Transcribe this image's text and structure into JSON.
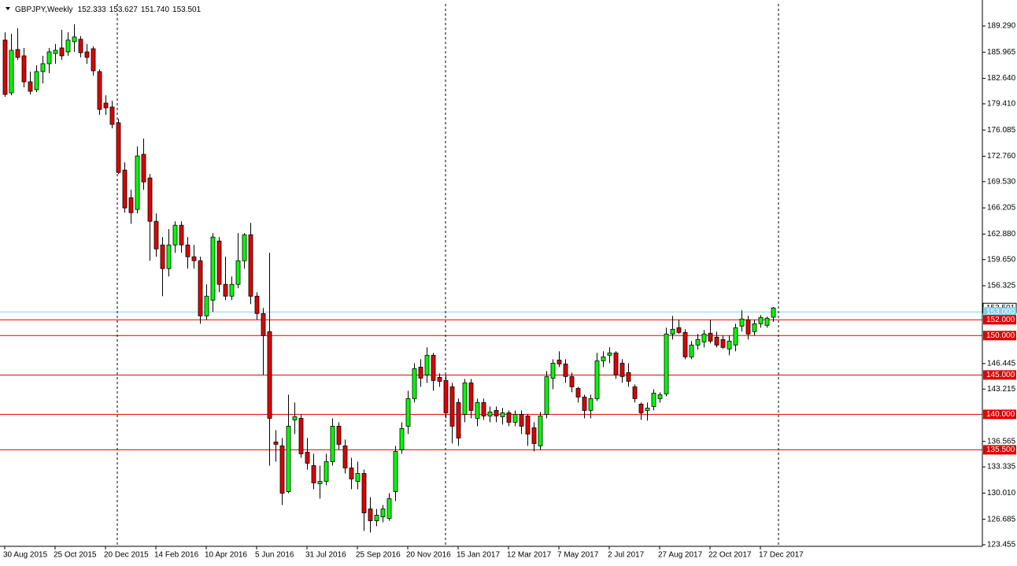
{
  "header": {
    "symbol": "GBPJPY,Weekly",
    "ohlc": [
      "152.333",
      "153.627",
      "151.740",
      "153.501"
    ]
  },
  "chart_data": {
    "type": "candlestick",
    "categories": [
      "30 Aug 2015",
      null,
      null,
      null,
      null,
      null,
      null,
      null,
      "25 Oct 2015",
      null,
      null,
      null,
      null,
      null,
      null,
      null,
      "20 Dec 2015",
      null,
      null,
      null,
      null,
      null,
      null,
      null,
      "14 Feb 2016",
      null,
      null,
      null,
      null,
      null,
      null,
      null,
      "10 Apr 2016",
      null,
      null,
      null,
      null,
      null,
      null,
      null,
      "5 Jun 2016",
      null,
      null,
      null,
      null,
      null,
      null,
      null,
      "31 Jul 2016",
      null,
      null,
      null,
      null,
      null,
      null,
      null,
      "25 Sep 2016",
      null,
      null,
      null,
      null,
      null,
      null,
      null,
      "20 Nov 2016",
      null,
      null,
      null,
      null,
      null,
      null,
      null,
      "15 Jan 2017",
      null,
      null,
      null,
      null,
      null,
      null,
      null,
      "12 Mar 2017",
      null,
      null,
      null,
      null,
      null,
      null,
      null,
      "7 May 2017",
      null,
      null,
      null,
      null,
      null,
      null,
      null,
      "2 Jul 2017",
      null,
      null,
      null,
      null,
      null,
      null,
      null,
      "27 Aug 2017",
      null,
      null,
      null,
      null,
      null,
      null,
      null,
      "22 Oct 2017",
      null,
      null,
      null,
      null,
      null,
      null,
      null,
      "17 Dec 2017",
      null,
      null
    ],
    "open": [
      187.5,
      180.8,
      186.3,
      185.5,
      182.2,
      181.2,
      183.5,
      184.5,
      185.8,
      186.5,
      186.0,
      187.3,
      187.6,
      186.0,
      186.4,
      183.5,
      179.5,
      179.0,
      177.0,
      171.0,
      167.5,
      166.0,
      173.0,
      170.0,
      164.5,
      161.5,
      158.5,
      161.5,
      164.0,
      161.5,
      160.0,
      159.5,
      152.5,
      154.5,
      162.0,
      156.5,
      155.0,
      156.5,
      159.5,
      162.8,
      155.0,
      152.8,
      150.5,
      136.5,
      136.0,
      130.2,
      139.3,
      139.5,
      135.2,
      133.5,
      131.2,
      131.5,
      134.0,
      138.5,
      136.0,
      133.2,
      131.5,
      132.5,
      128.0,
      126.5,
      127.0,
      126.8,
      130.2,
      135.5,
      138.5,
      142.0,
      146.0,
      145.0,
      147.5,
      144.7,
      144.3,
      143.5,
      141.5,
      140.0,
      144.0,
      139.5,
      141.5,
      139.8,
      140.5,
      139.7,
      140.2,
      139.0,
      140.0,
      139.8,
      138.3,
      136.0,
      140.0,
      144.6,
      146.9,
      146.4,
      144.8,
      143.3,
      142.2,
      140.5,
      142.0,
      146.8,
      147.5,
      147.8,
      146.5,
      145.3,
      143.5,
      141.3,
      140.5,
      141.0,
      142.0,
      142.6,
      150.2,
      151.0,
      150.4,
      147.3,
      148.8,
      149.2,
      150.3,
      149.8,
      149.5,
      148.3,
      148.8,
      151.2,
      152.0,
      150.5,
      151.5,
      151.3,
      152.333
    ],
    "high": [
      188.5,
      188.3,
      189.0,
      186.5,
      183.5,
      184.3,
      185.5,
      186.5,
      187.0,
      188.8,
      188.5,
      189.5,
      188.0,
      187.0,
      186.7,
      183.8,
      180.5,
      179.8,
      177.5,
      172.0,
      168.5,
      174.0,
      175.0,
      170.5,
      165.5,
      162.5,
      163.5,
      164.5,
      164.5,
      162.5,
      161.5,
      160.0,
      156.5,
      163.0,
      162.5,
      160.0,
      157.5,
      163.0,
      163.0,
      164.3,
      155.5,
      153.5,
      160.5,
      138.0,
      137.0,
      142.5,
      141.5,
      140.0,
      137.0,
      135.0,
      133.5,
      135.0,
      139.5,
      139.0,
      136.8,
      134.5,
      134.0,
      133.0,
      129.5,
      128.0,
      128.5,
      130.0,
      136.0,
      139.0,
      143.0,
      146.5,
      147.0,
      148.5,
      147.8,
      145.2,
      145.0,
      144.0,
      142.0,
      144.5,
      144.5,
      142.0,
      142.0,
      141.0,
      141.0,
      140.8,
      140.5,
      140.5,
      140.5,
      140.0,
      139.0,
      140.3,
      145.5,
      147.0,
      148.0,
      147.0,
      145.3,
      143.5,
      142.5,
      142.5,
      147.8,
      148.0,
      148.5,
      148.0,
      147.0,
      146.5,
      143.8,
      141.5,
      141.5,
      143.2,
      142.8,
      151.0,
      152.5,
      152.0,
      150.8,
      149.3,
      150.2,
      150.7,
      152.0,
      150.5,
      150.0,
      150.0,
      151.5,
      153.2,
      152.5,
      152.0,
      152.6,
      152.4,
      153.627
    ],
    "low": [
      180.3,
      180.5,
      185.0,
      181.5,
      180.6,
      180.9,
      182.0,
      183.3,
      184.5,
      185.0,
      185.5,
      186.0,
      185.3,
      184.5,
      183.0,
      178.0,
      178.0,
      176.3,
      170.5,
      165.6,
      164.2,
      165.5,
      168.5,
      159.5,
      160.0,
      155.0,
      157.5,
      160.5,
      160.5,
      158.5,
      158.5,
      151.5,
      152.0,
      153.0,
      155.5,
      154.5,
      154.5,
      156.0,
      158.5,
      154.0,
      152.0,
      145.0,
      133.5,
      134.0,
      128.5,
      130.0,
      137.5,
      134.5,
      133.0,
      130.5,
      129.3,
      131.0,
      133.5,
      135.5,
      132.5,
      130.5,
      130.5,
      125.2,
      125.0,
      125.8,
      126.3,
      126.5,
      129.0,
      135.0,
      137.5,
      141.5,
      143.5,
      144.0,
      143.0,
      143.5,
      139.5,
      136.3,
      136.0,
      139.0,
      139.5,
      138.5,
      139.3,
      139.0,
      139.0,
      138.7,
      138.5,
      138.5,
      137.5,
      136.0,
      135.3,
      135.5,
      139.5,
      143.2,
      146.0,
      144.0,
      142.8,
      141.5,
      139.5,
      139.5,
      141.7,
      146.0,
      146.5,
      144.5,
      144.0,
      143.5,
      141.5,
      139.3,
      139.2,
      140.5,
      141.5,
      142.3,
      149.5,
      150.2,
      147.0,
      147.0,
      148.2,
      148.5,
      149.0,
      148.5,
      148.3,
      147.5,
      148.0,
      150.5,
      149.5,
      150.0,
      151.0,
      151.0,
      151.74
    ],
    "close": [
      180.6,
      186.2,
      185.3,
      182.2,
      181.0,
      183.5,
      184.5,
      186.0,
      186.2,
      185.5,
      187.5,
      187.9,
      185.9,
      185.3,
      183.6,
      178.7,
      178.9,
      176.8,
      170.7,
      166.2,
      165.6,
      172.8,
      169.5,
      164.5,
      161.0,
      158.5,
      161.5,
      164.0,
      161.5,
      160.0,
      159.5,
      152.5,
      155.0,
      162.5,
      156.5,
      155.0,
      156.5,
      159.5,
      162.8,
      155.0,
      152.8,
      150.0,
      139.5,
      136.2,
      130.0,
      138.5,
      139.7,
      135.0,
      133.8,
      131.3,
      131.5,
      134.0,
      138.5,
      136.2,
      133.2,
      131.8,
      132.5,
      127.5,
      126.5,
      127.2,
      128.0,
      129.3,
      135.3,
      138.2,
      142.0,
      145.8,
      144.6,
      147.5,
      144.3,
      144.2,
      140.2,
      138.5,
      137.0,
      144.0,
      140.5,
      141.5,
      139.8,
      140.3,
      139.8,
      140.2,
      139.0,
      140.0,
      138.5,
      137.5,
      136.3,
      139.8,
      144.8,
      146.5,
      146.4,
      144.8,
      143.5,
      142.2,
      140.5,
      142.0,
      146.8,
      147.3,
      147.8,
      145.0,
      144.8,
      144.2,
      142.0,
      140.2,
      140.8,
      142.7,
      142.5,
      150.2,
      150.8,
      150.4,
      147.3,
      148.8,
      149.5,
      150.2,
      149.3,
      148.8,
      148.5,
      149.3,
      151.0,
      152.1,
      150.2,
      151.5,
      152.3,
      152.2,
      153.501
    ],
    "up_color": "#00ff00",
    "down_color": "#e00000",
    "ylim": [
      123.255,
      192.087
    ],
    "yticks": [
      {
        "value": 189.29,
        "label": "189.290"
      },
      185.965,
      {
        "value": 182.64,
        "label": "182.640"
      },
      {
        "value": 179.41,
        "label": "179.410"
      },
      176.085,
      {
        "value": 172.76,
        "label": "172.760"
      },
      {
        "value": 169.53,
        "label": "169.530"
      },
      166.205,
      {
        "value": 162.88,
        "label": "162.880"
      },
      {
        "value": 159.65,
        "label": "159.650"
      },
      156.325,
      146.445,
      143.215,
      136.565,
      133.335,
      {
        "value": 130.01,
        "label": "130.010"
      },
      126.685,
      123.455
    ],
    "last_price": {
      "value": 153.501,
      "label": "153.501"
    },
    "levels": [
      {
        "value": 153,
        "label": "153.000",
        "color": "#87ceeb"
      },
      {
        "value": 152,
        "label": "152.000",
        "color": "#e00000"
      },
      {
        "value": 150,
        "label": "150.000",
        "color": "#e00000"
      },
      {
        "value": 145,
        "label": "145.000",
        "color": "#e00000"
      },
      {
        "value": 140,
        "label": "140.000",
        "color": "#e00000"
      },
      {
        "value": 135.5,
        "label": "135.500",
        "color": "#e00000"
      }
    ]
  }
}
